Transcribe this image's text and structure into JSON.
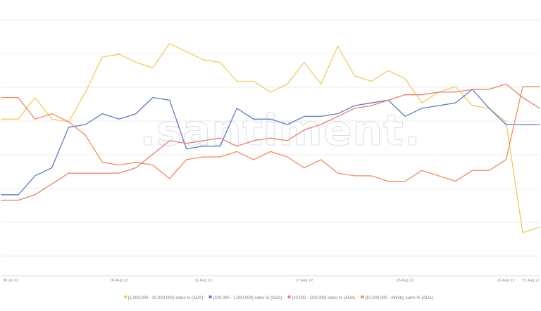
{
  "watermark": ".santiment.",
  "chart_data": {
    "type": "line",
    "x": [
      "30 Jul 22",
      "31 Jul 22",
      "01 Aug 22",
      "02 Aug 22",
      "03 Aug 22",
      "04 Aug 22",
      "05 Aug 22",
      "06 Aug 22",
      "07 Aug 22",
      "08 Aug 22",
      "09 Aug 22",
      "10 Aug 22",
      "11 Aug 22",
      "12 Aug 22",
      "13 Aug 22",
      "14 Aug 22",
      "15 Aug 22",
      "16 Aug 22",
      "17 Aug 22",
      "18 Aug 22",
      "19 Aug 22",
      "20 Aug 22",
      "21 Aug 22",
      "22 Aug 22",
      "23 Aug 22",
      "24 Aug 22",
      "25 Aug 22",
      "26 Aug 22",
      "27 Aug 22",
      "28 Aug 22",
      "29 Aug 22",
      "30 Aug 22",
      "31 Aug 22"
    ],
    "x_ticks": [
      "30 Jul 22",
      "06 Aug 22",
      "11 Aug 22",
      "17 Aug 22",
      "23 Aug 22",
      "29 Aug 22",
      "31 Aug 22"
    ],
    "y_gridlines": 8,
    "grid": true,
    "legend_position": "bottom",
    "series": [
      {
        "name": "[1,000,000 - 10,000,000) coins % (ADA)",
        "color": "#f2cb5c",
        "values": [
          58,
          58,
          66,
          58,
          57,
          68,
          81,
          82,
          79,
          77,
          86,
          83,
          80,
          79,
          72,
          72,
          68,
          71,
          79,
          71,
          85,
          74,
          72,
          76,
          73,
          64,
          68,
          70,
          63,
          62,
          57,
          16,
          18
        ]
      },
      {
        "name": "[100,000 - 1,000,000) coins % (ADA)",
        "color": "#5b7bc7",
        "values": [
          30,
          30,
          37,
          40,
          55,
          56,
          60,
          58,
          60,
          66,
          65,
          47,
          48,
          48,
          62,
          58,
          58,
          56,
          59,
          59,
          60,
          63,
          64,
          65,
          59,
          62,
          63,
          64,
          69,
          62,
          56,
          56,
          56
        ]
      },
      {
        "name": "[10,000 - 100,000) coins % (ADA)",
        "color": "#e8806a",
        "values": [
          28,
          28,
          30,
          34,
          38,
          38,
          38,
          38,
          40,
          45,
          50,
          49,
          50,
          51,
          48,
          50,
          51,
          50,
          54,
          56,
          59,
          62,
          63,
          65,
          67,
          67,
          68,
          68,
          69,
          69,
          71,
          66,
          62
        ]
      },
      {
        "name": "[10,000,000 - infinity) coins % (ADA)",
        "color": "#f28c5a",
        "values": [
          66,
          66,
          58,
          60,
          57,
          52,
          42,
          41,
          42,
          41,
          36,
          43,
          44,
          44,
          46,
          43,
          46,
          44,
          40,
          43,
          38,
          37,
          37,
          35,
          35,
          39,
          37,
          35,
          39,
          39,
          43,
          70,
          70
        ]
      }
    ]
  }
}
